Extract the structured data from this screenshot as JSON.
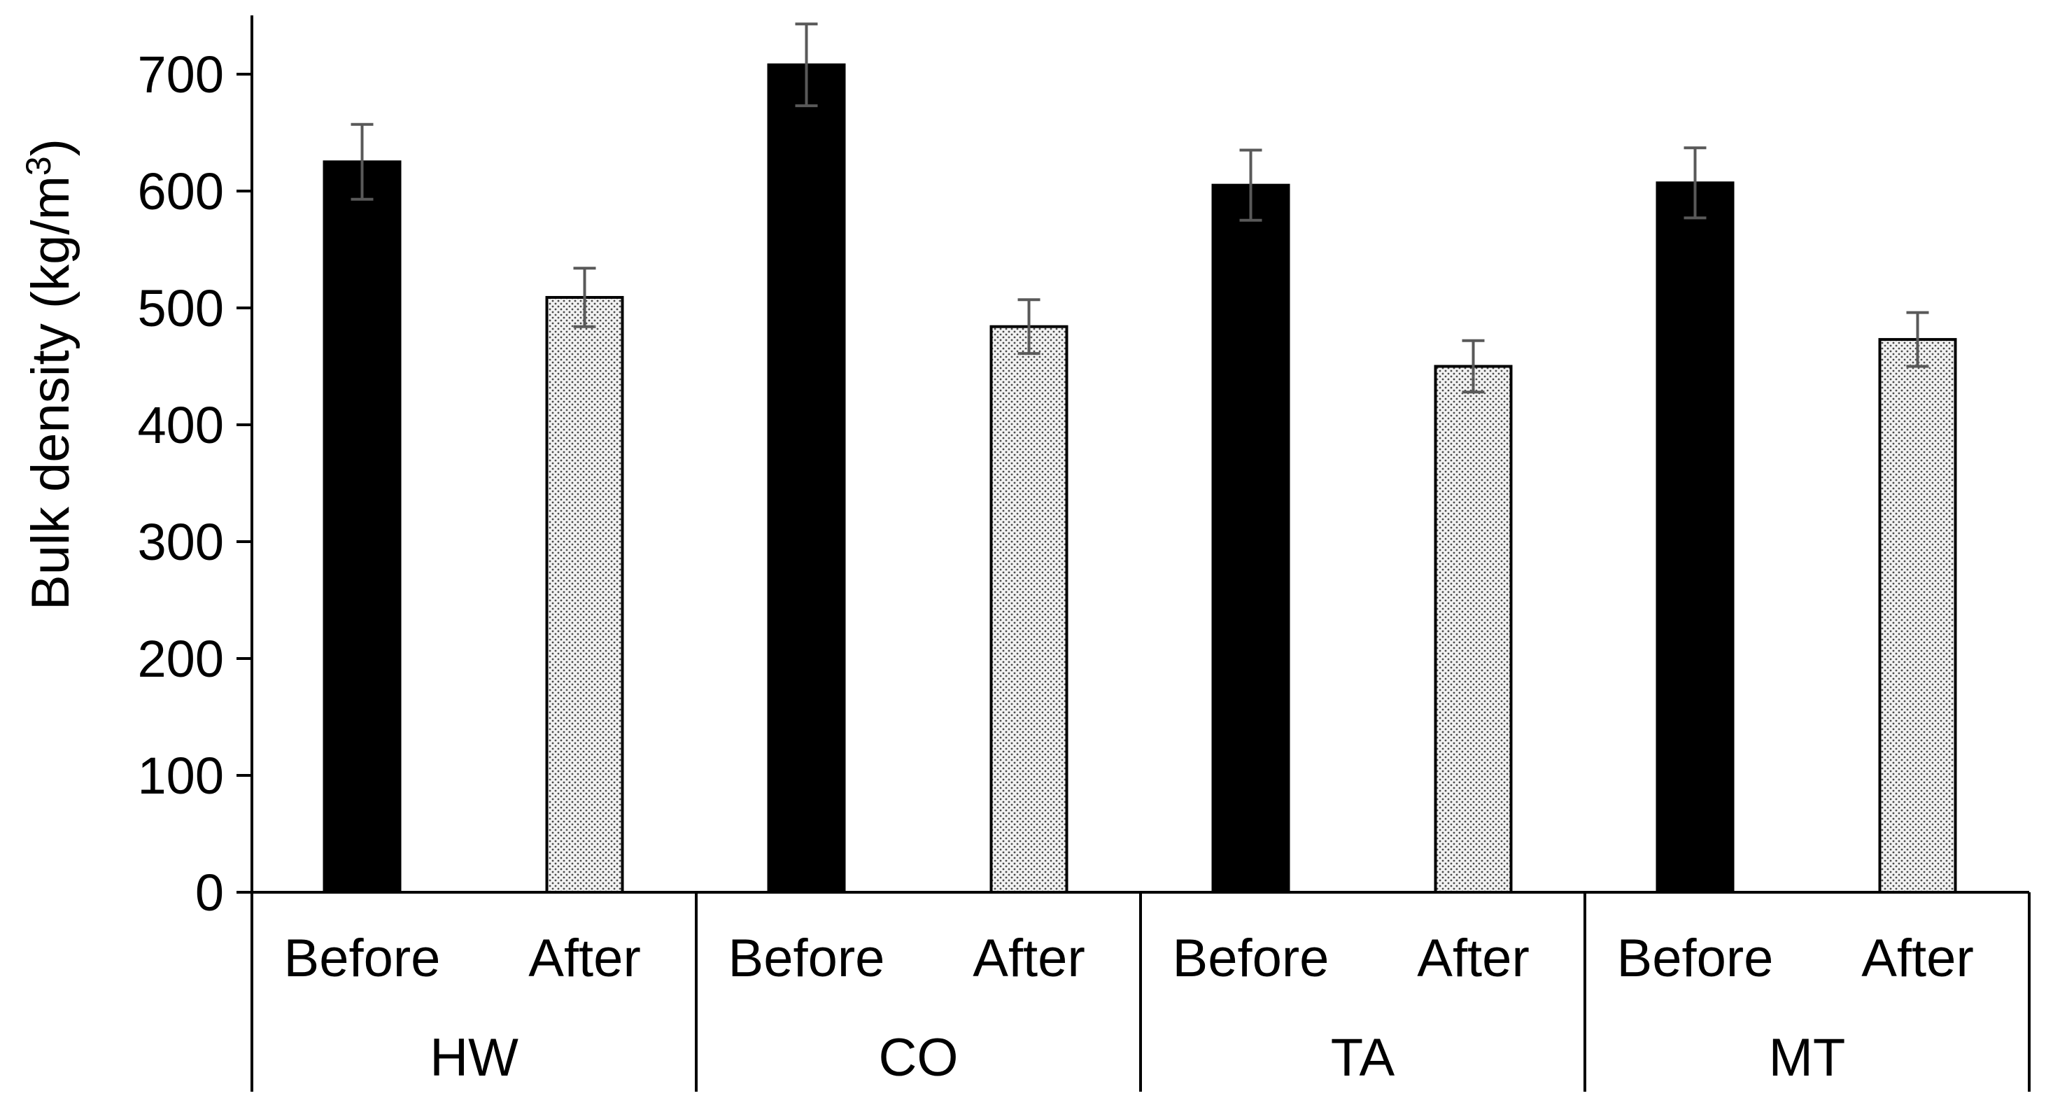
{
  "chart_data": {
    "type": "bar",
    "title": "",
    "xlabel": "",
    "ylabel": "Bulk density (kg/m",
    "ylabel_superscript": "3",
    "ylabel_close": ")",
    "ylim": [
      0,
      750
    ],
    "yticks": [
      "0",
      "100",
      "200",
      "300",
      "400",
      "500",
      "600",
      "700"
    ],
    "grid": false,
    "groups": [
      "HW",
      "CO",
      "TA",
      "MT"
    ],
    "sub_categories": [
      "Before",
      "After"
    ],
    "series": [
      {
        "name": "Before",
        "fill": "#000000",
        "pattern": "solid",
        "values": [
          625,
          708,
          605,
          607
        ],
        "errors": [
          32,
          35,
          30,
          30
        ]
      },
      {
        "name": "After",
        "fill": "#d9d9d9",
        "pattern": "dotted",
        "values": [
          509,
          484,
          450,
          473
        ],
        "errors": [
          25,
          23,
          22,
          23
        ]
      }
    ],
    "error_bar_color": "#595959"
  }
}
